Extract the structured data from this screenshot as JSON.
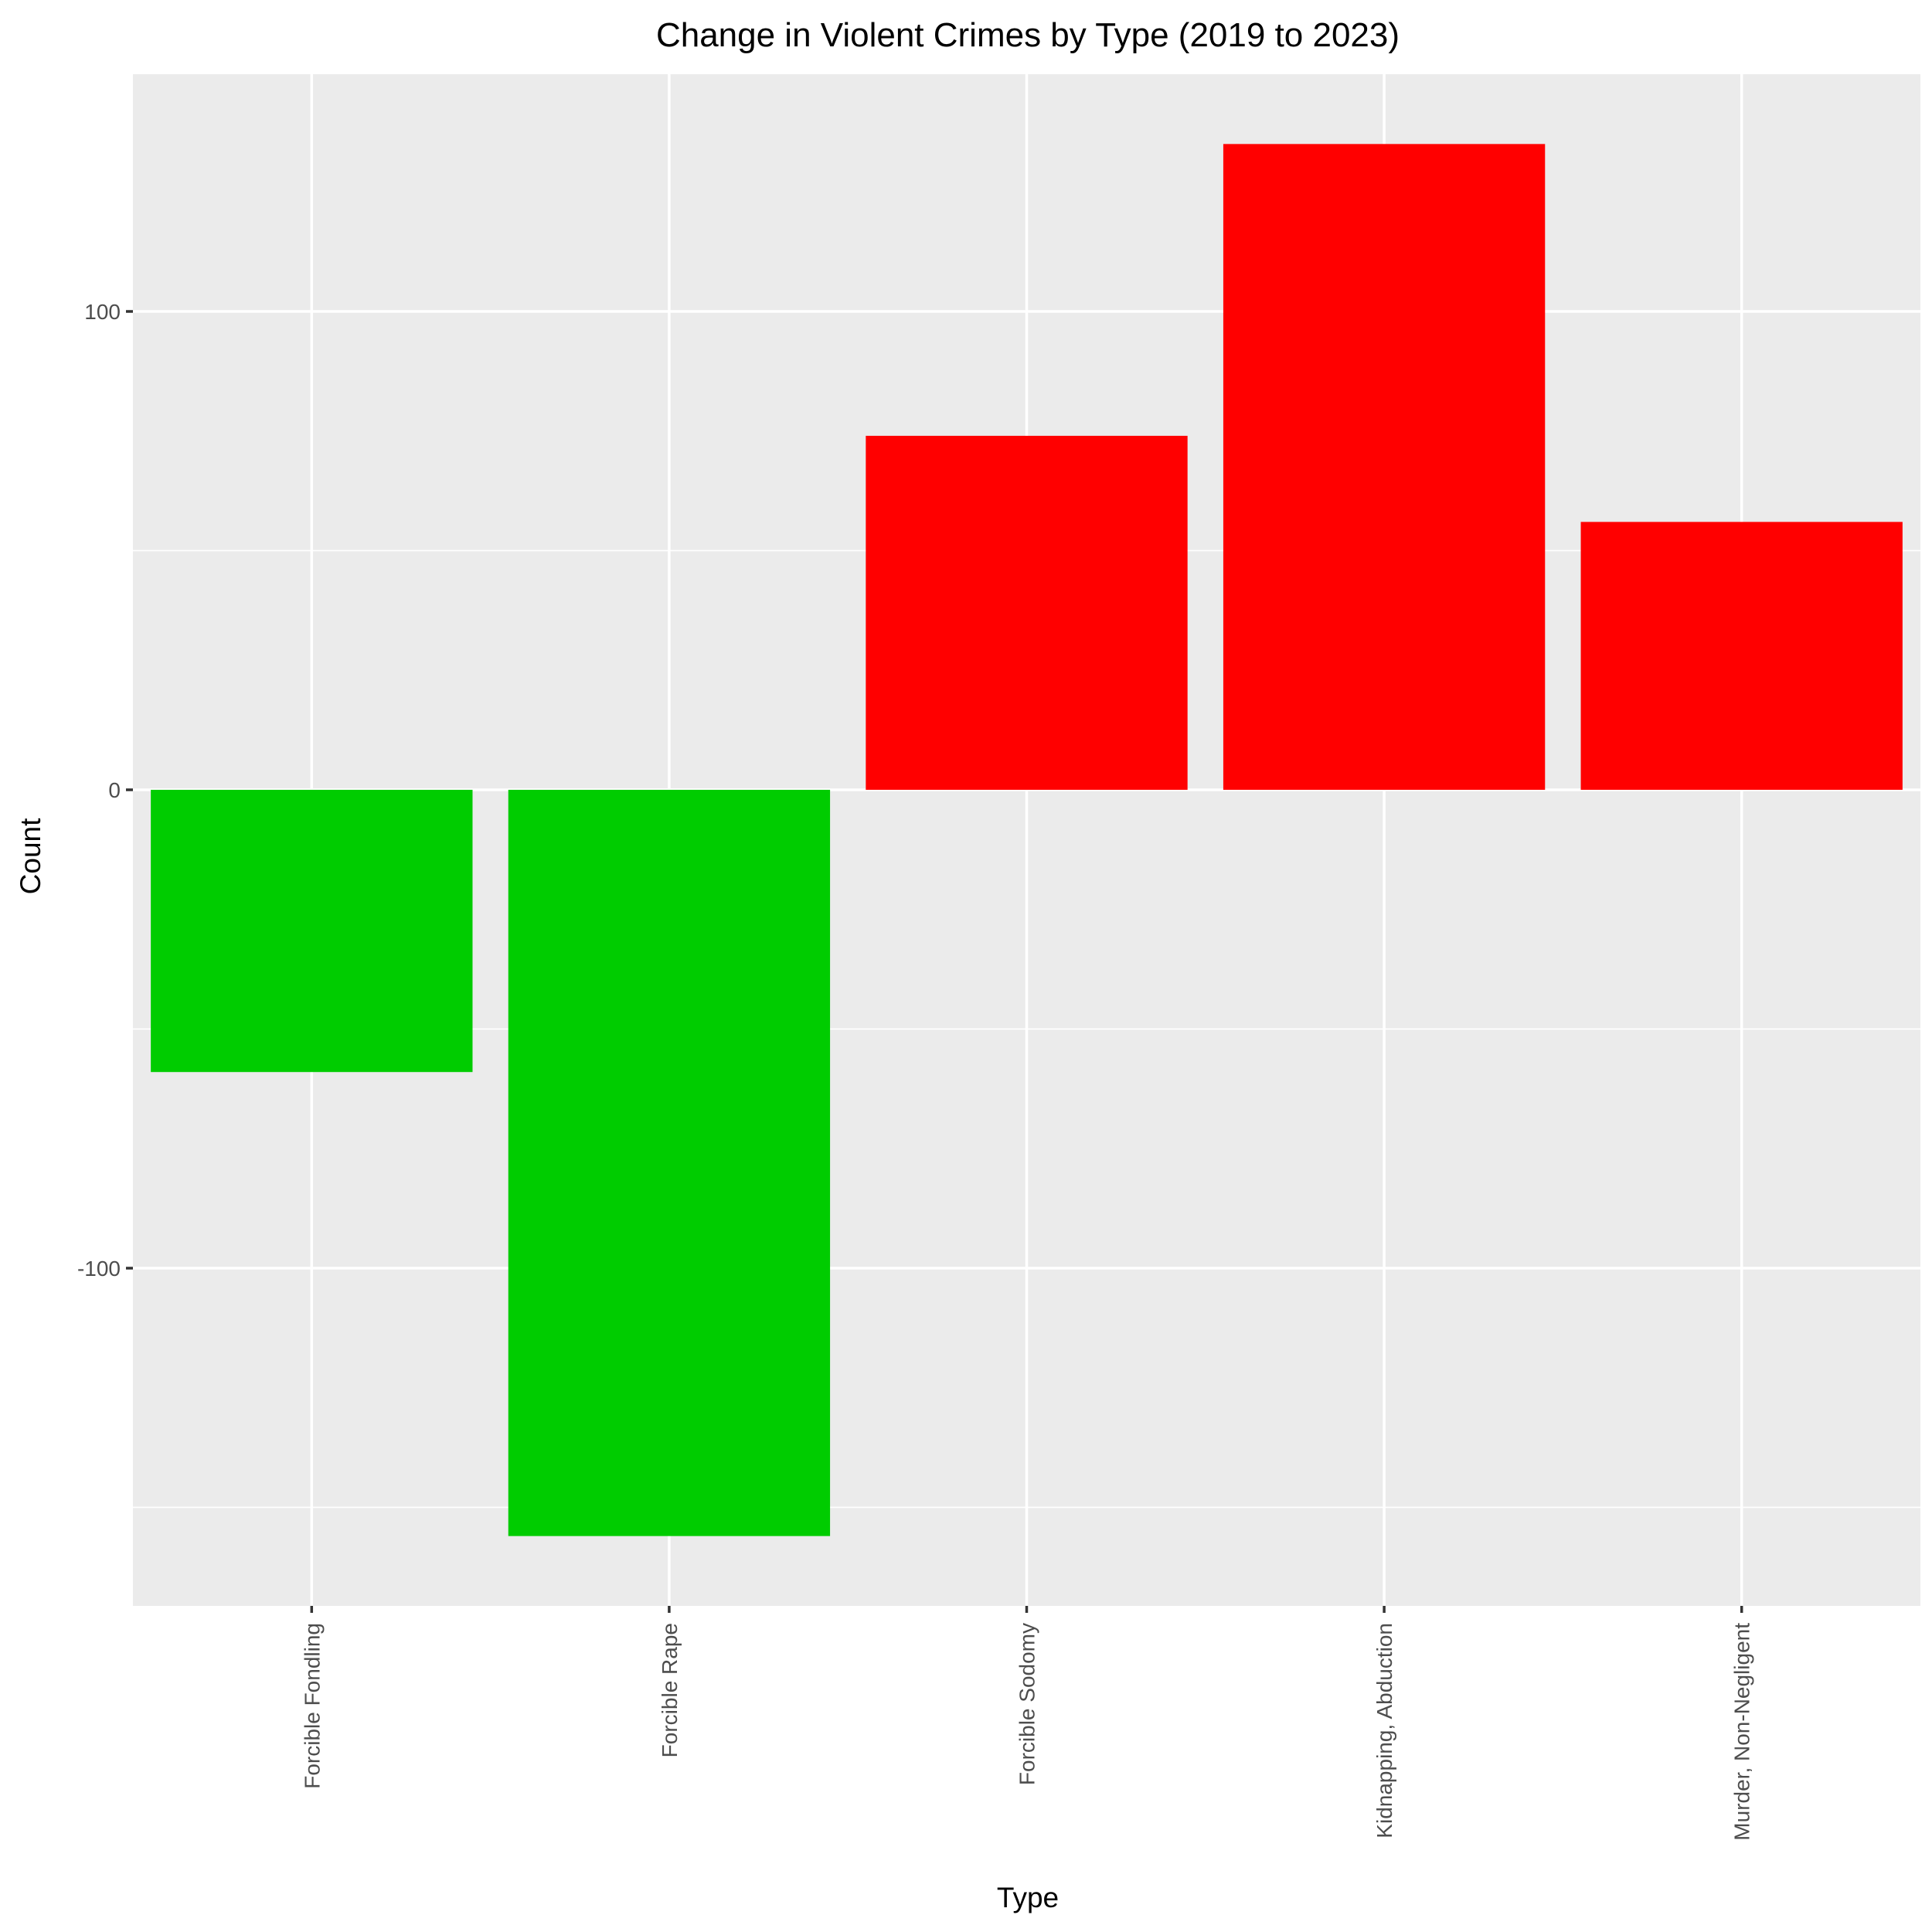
{
  "chart_data": {
    "type": "bar",
    "title": "Change in Violent Crimes by Type (2019 to 2023)",
    "xlabel": "Type",
    "ylabel": "Count",
    "categories": [
      "Forcible Fondling",
      "Forcible Rape",
      "Forcible Sodomy",
      "Kidnapping, Abduction",
      "Murder, Non-Negligent"
    ],
    "values": [
      -59,
      -156,
      74,
      135,
      56
    ],
    "bar_colors": [
      "#00cc00",
      "#00cc00",
      "#ff0000",
      "#ff0000",
      "#ff0000"
    ],
    "colors": {
      "decrease": "#00cc00",
      "increase": "#ff0000",
      "panel_background": "#ebebeb",
      "grid": "#ffffff"
    },
    "y_ticks": [
      -100,
      0,
      100
    ],
    "y_tick_labels": [
      "-100",
      "0",
      "100"
    ],
    "ylim": [
      -170,
      150
    ],
    "grid": true,
    "legend": "none"
  }
}
